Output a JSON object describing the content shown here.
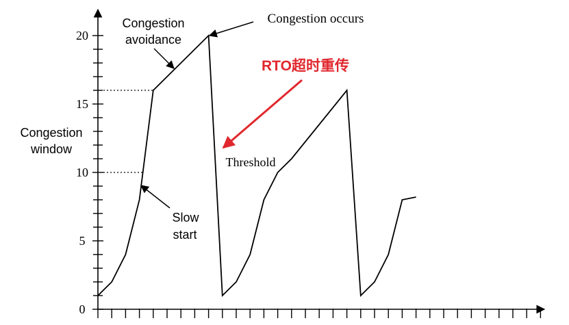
{
  "chart_data": {
    "type": "line",
    "title": "",
    "xlabel": "",
    "ylabel": "Congestion window",
    "ylabel_lines": [
      "Congestion",
      "window"
    ],
    "ylim": [
      0,
      20
    ],
    "y_ticks": [
      0,
      5,
      10,
      15,
      20
    ],
    "y_tick_labels": [
      "0",
      "5",
      "10",
      "15",
      "20"
    ],
    "x_ticks": [
      0,
      1,
      2,
      3,
      4,
      5,
      6,
      7,
      8,
      9,
      10,
      11,
      12,
      13,
      14,
      15,
      16,
      17,
      18,
      19,
      20,
      21,
      22,
      23,
      24,
      25,
      26,
      27,
      28,
      29,
      30,
      31,
      32
    ],
    "xlim": [
      0,
      32
    ],
    "grid": false,
    "series": [
      {
        "x": [
          0,
          1,
          2,
          3,
          4,
          8,
          9,
          10,
          11,
          12,
          13,
          14,
          18,
          19,
          20,
          21,
          22,
          23
        ],
        "values": [
          1,
          2,
          4,
          8,
          16,
          20,
          1,
          2,
          4,
          8,
          10,
          11,
          16,
          1,
          2,
          4,
          8,
          8.2
        ],
        "color": "#000000"
      }
    ],
    "threshold_lines": [
      16,
      10
    ],
    "annotations": {
      "congestion_avoidance": [
        "Congestion",
        "avoidance"
      ],
      "congestion_occurs": "Congestion occurs",
      "threshold": "Threshold",
      "slow_start": [
        "Slow",
        "start"
      ],
      "rto": "RTO超时重传",
      "rto_color": "#e0282e"
    }
  }
}
